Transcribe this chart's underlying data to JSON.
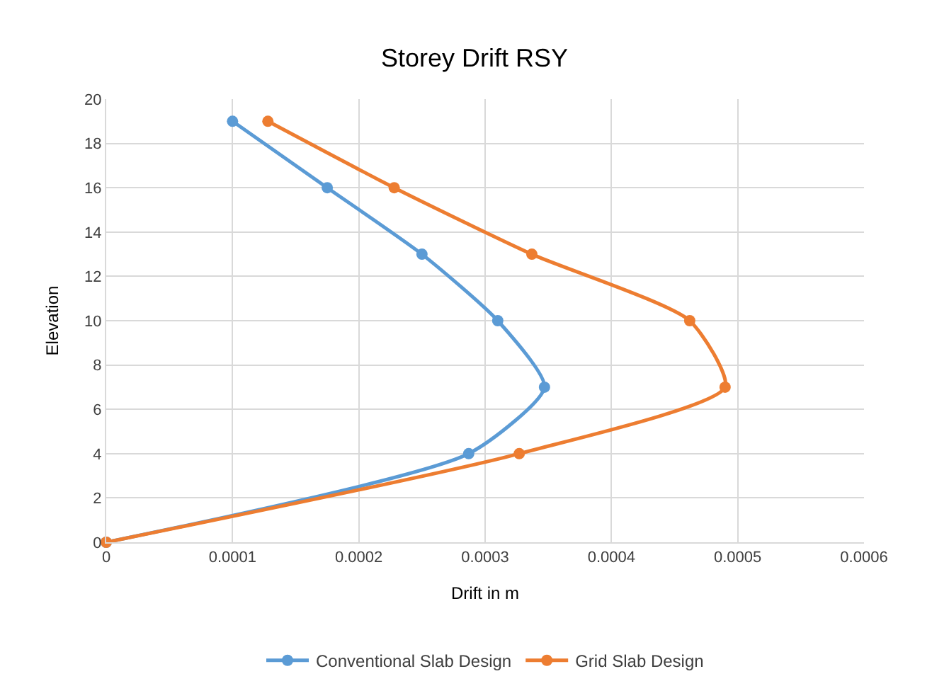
{
  "chart_data": {
    "type": "line",
    "title": "Storey Drift RSY",
    "xlabel": "Drift in m",
    "ylabel": "Elevation",
    "xlim": [
      0,
      0.0006
    ],
    "xticks": [
      0,
      0.0001,
      0.0002,
      0.0003,
      0.0004,
      0.0005,
      0.0006
    ],
    "ylim": [
      0,
      20
    ],
    "yticks": [
      0,
      2,
      4,
      6,
      8,
      10,
      12,
      14,
      16,
      18,
      20
    ],
    "grid": true,
    "legend": "bottom",
    "marker": "circle",
    "line_style": "solid",
    "series": [
      {
        "name": "Conventional Slab Design",
        "color": "#5b9bd5",
        "x": [
          0,
          0.000287,
          0.000347,
          0.00031,
          0.00025,
          0.000175,
          0.0001
        ],
        "values": [
          0,
          4,
          7,
          10,
          13,
          16,
          19
        ]
      },
      {
        "name": "Grid Slab Design",
        "color": "#ed7d31",
        "x": [
          0,
          0.000327,
          0.00049,
          0.000462,
          0.000337,
          0.000228,
          0.000128
        ],
        "values": [
          0,
          4,
          7,
          10,
          13,
          16,
          19
        ]
      }
    ]
  }
}
